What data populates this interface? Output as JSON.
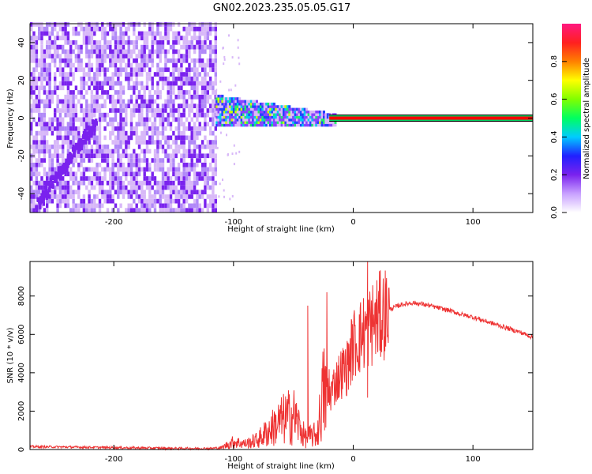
{
  "title": "GN02.2023.235.05.05.G17",
  "colors": {
    "snr_line": "#ee3333",
    "spectral_line": "#ff0000",
    "scatter_low": "#7a22ee",
    "scatter_pale": "#d8b8f8"
  },
  "chart_data": [
    {
      "type": "heatmap",
      "xlabel": "Height of straight line (km)",
      "ylabel": "Frequency (Hz)",
      "xlim": [
        -270,
        150
      ],
      "ylim": [
        -50,
        50
      ],
      "xticks": [
        -200,
        -100,
        0,
        100
      ],
      "yticks": [
        -40,
        -20,
        0,
        20,
        40
      ],
      "colorbar": {
        "label": "Normalized spectral amplitude",
        "range": [
          0,
          1
        ],
        "ticks": [
          "0.0",
          "0.2",
          "0.4",
          "0.6",
          "0.8"
        ],
        "colormap": [
          "#ffffff",
          "#c8a0ff",
          "#7a22ee",
          "#2020ff",
          "#00ccff",
          "#00ff60",
          "#80ff00",
          "#ffff00",
          "#ff8000",
          "#ff2020",
          "#ff1880"
        ]
      },
      "regions": [
        {
          "name": "noise",
          "x_range": [
            -270,
            -115
          ],
          "freq_range": [
            -50,
            50
          ],
          "amplitude": [
            0.0,
            0.15
          ]
        },
        {
          "name": "signal-band",
          "x_range": [
            -115,
            -15
          ],
          "freq_center": [
            5,
            0
          ],
          "freq_halfwidth": [
            8,
            3
          ],
          "amplitude": [
            0.1,
            0.5
          ]
        },
        {
          "name": "tone",
          "x_range": [
            -20,
            150
          ],
          "freq": 0,
          "amplitude": 0.9
        }
      ],
      "diagonal_feature": {
        "from": [
          -265,
          -45
        ],
        "to": [
          -215,
          0
        ]
      }
    },
    {
      "type": "line",
      "xlabel": "Height of straight line (km)",
      "ylabel": "SNR (10 * v/v)",
      "xlim": [
        -270,
        150
      ],
      "ylim": [
        0,
        9800
      ],
      "xticks": [
        -200,
        -100,
        0,
        100
      ],
      "yticks": [
        0,
        2000,
        4000,
        6000,
        8000
      ],
      "series": [
        {
          "x": [
            -270,
            -200,
            -150,
            -120,
            -110,
            -100,
            -90,
            -80,
            -70,
            -60,
            -50,
            -40,
            -30,
            -25,
            -20,
            -15,
            -10,
            -5,
            0,
            5,
            10,
            20,
            30,
            40,
            50,
            60,
            70,
            80,
            90,
            100,
            110,
            120,
            130,
            140,
            150
          ],
          "values": [
            150,
            100,
            60,
            50,
            100,
            400,
            300,
            500,
            1000,
            1500,
            1800,
            600,
            800,
            3000,
            2800,
            3500,
            4000,
            4300,
            5500,
            5800,
            6200,
            6800,
            7300,
            7550,
            7650,
            7550,
            7400,
            7250,
            7050,
            6900,
            6700,
            6500,
            6300,
            6100,
            5850
          ],
          "peaks": [
            [
              -38,
              7500
            ],
            [
              -22,
              8200
            ],
            [
              12,
              9800
            ],
            [
              12,
              2700
            ]
          ]
        }
      ]
    }
  ]
}
